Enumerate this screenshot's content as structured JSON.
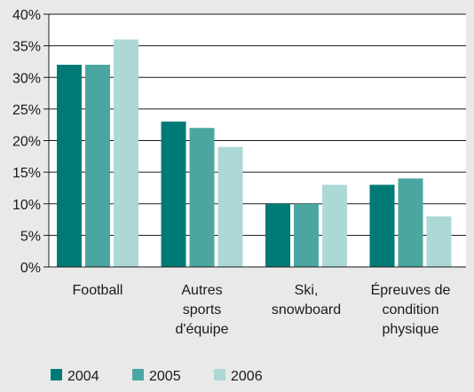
{
  "chart_data": {
    "type": "bar",
    "categories": [
      [
        "Football"
      ],
      [
        "Autres",
        "sports",
        "d'équipe"
      ],
      [
        "Ski,",
        "snowboard"
      ],
      [
        "Épreuves de",
        "condition",
        "physique"
      ]
    ],
    "series": [
      {
        "name": "2004",
        "color": "#007a76",
        "values": [
          32,
          23,
          10,
          13
        ]
      },
      {
        "name": "2005",
        "color": "#4ba6a1",
        "values": [
          32,
          22,
          10,
          14
        ]
      },
      {
        "name": "2006",
        "color": "#acd9d5",
        "values": [
          36,
          19,
          13,
          8
        ]
      }
    ],
    "yticks": [
      "0%",
      "5%",
      "10%",
      "15%",
      "20%",
      "25%",
      "30%",
      "35%",
      "40%"
    ],
    "ylim": [
      0,
      40
    ],
    "ystep": 5,
    "grid": true,
    "legend_position": "bottom-left",
    "title": "",
    "xlabel": "",
    "ylabel": ""
  }
}
